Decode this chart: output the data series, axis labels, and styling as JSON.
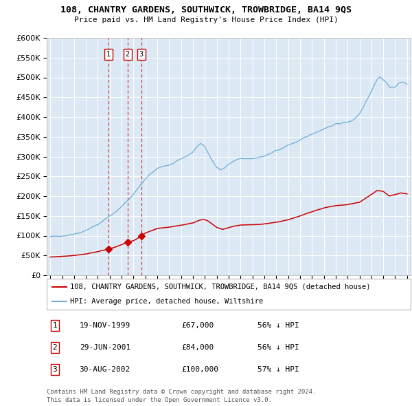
{
  "title": "108, CHANTRY GARDENS, SOUTHWICK, TROWBRIDGE, BA14 9QS",
  "subtitle": "Price paid vs. HM Land Registry's House Price Index (HPI)",
  "bg_color": "#dce9f5",
  "hpi_color": "#6baed6",
  "price_color": "#cc0000",
  "transactions": [
    {
      "num": 1,
      "date": "19-NOV-1999",
      "price": 67000,
      "pct": "56%",
      "x_year": 1999.88
    },
    {
      "num": 2,
      "date": "29-JUN-2001",
      "price": 84000,
      "pct": "56%",
      "x_year": 2001.49
    },
    {
      "num": 3,
      "date": "30-AUG-2002",
      "price": 100000,
      "pct": "57%",
      "x_year": 2002.66
    }
  ],
  "legend_label_price": "108, CHANTRY GARDENS, SOUTHWICK, TROWBRIDGE, BA14 9QS (detached house)",
  "legend_label_hpi": "HPI: Average price, detached house, Wiltshire",
  "footer1": "Contains HM Land Registry data © Crown copyright and database right 2024.",
  "footer2": "This data is licensed under the Open Government Licence v3.0.",
  "ylim": [
    0,
    600000
  ],
  "yticks": [
    0,
    50000,
    100000,
    150000,
    200000,
    250000,
    300000,
    350000,
    400000,
    450000,
    500000,
    550000,
    600000
  ],
  "xlim_start": 1994.7,
  "xlim_end": 2025.3
}
